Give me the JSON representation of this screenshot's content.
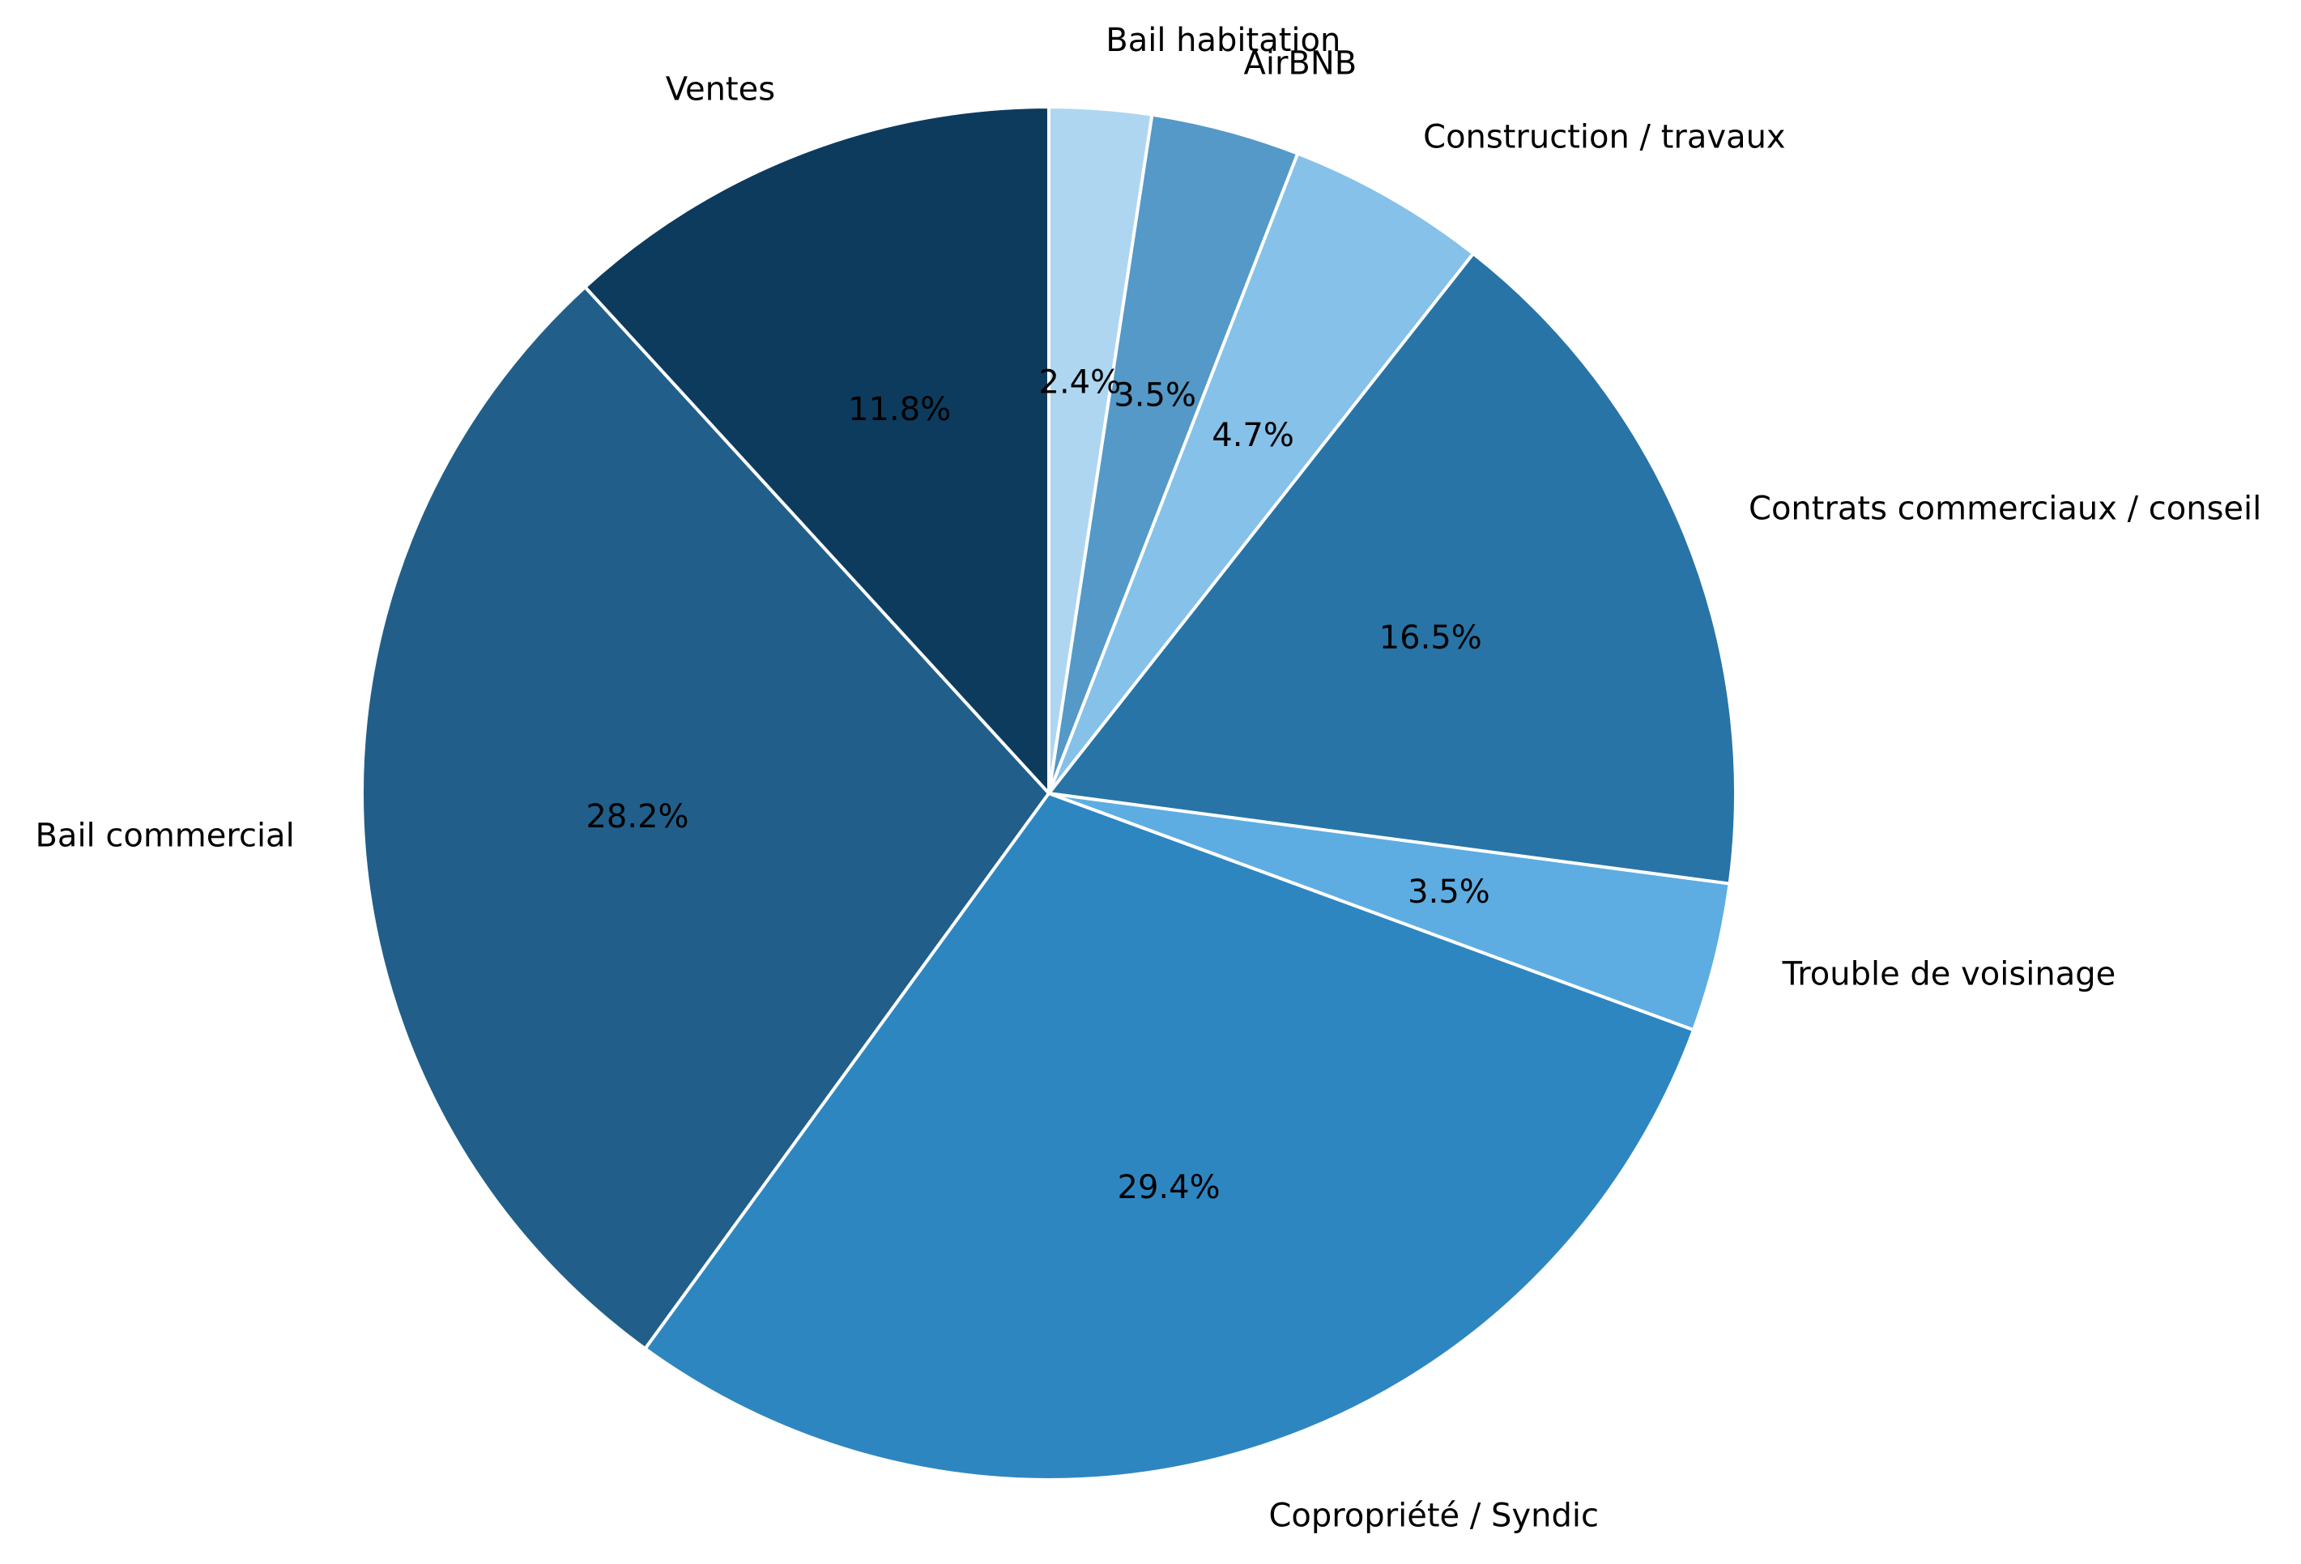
{
  "chart_data": {
    "type": "pie",
    "title": "",
    "start_angle_deg": 90,
    "direction": "counterclockwise",
    "slices": [
      {
        "label": "Ventes",
        "value": 11.8,
        "pct_label": "11.8%",
        "color": "#0d3b5e"
      },
      {
        "label": "Bail commercial",
        "value": 28.2,
        "pct_label": "28.2%",
        "color": "#215f8a"
      },
      {
        "label": "Copropriété / Syndic",
        "value": 29.4,
        "pct_label": "29.4%",
        "color": "#2e86c1"
      },
      {
        "label": "Trouble de voisinage",
        "value": 3.5,
        "pct_label": "3.5%",
        "color": "#5dade2"
      },
      {
        "label": "Contrats commerciaux / conseil",
        "value": 16.5,
        "pct_label": "16.5%",
        "color": "#2874a6"
      },
      {
        "label": "Construction / travaux",
        "value": 4.7,
        "pct_label": "4.7%",
        "color": "#85c1e9"
      },
      {
        "label": "AirBNB",
        "value": 3.5,
        "pct_label": "3.5%",
        "color": "#5499c7"
      },
      {
        "label": "Bail habitation",
        "value": 2.4,
        "pct_label": "2.4%",
        "color": "#aed6f1"
      }
    ]
  }
}
